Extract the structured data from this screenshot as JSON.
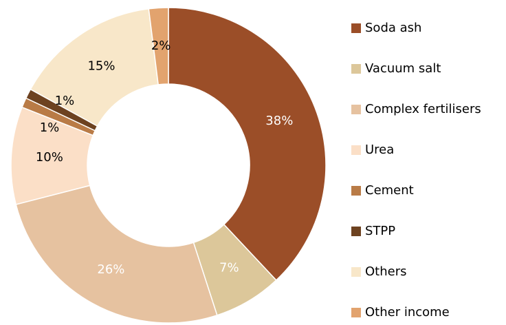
{
  "chart_data": {
    "type": "donut",
    "categories": [
      "Soda ash",
      "Vacuum salt",
      "Complex fertilisers",
      "Urea",
      "Cement",
      "STPP",
      "Others",
      "Other income"
    ],
    "values": [
      38,
      7,
      26,
      10,
      1,
      1,
      15,
      2
    ],
    "value_labels": [
      "38%",
      "7%",
      "26%",
      "10%",
      "1%",
      "1%",
      "15%",
      "2%"
    ],
    "colors": [
      "#9b4e28",
      "#dcc79a",
      "#e6c2a0",
      "#fbdfc7",
      "#b97b46",
      "#6d4220",
      "#f8e7c9",
      "#e2a36e"
    ],
    "value_label_colors": [
      "#ffffff",
      "#ffffff",
      "#ffffff",
      "#000000",
      "#000000",
      "#000000",
      "#000000",
      "#000000"
    ],
    "legend": "right"
  }
}
